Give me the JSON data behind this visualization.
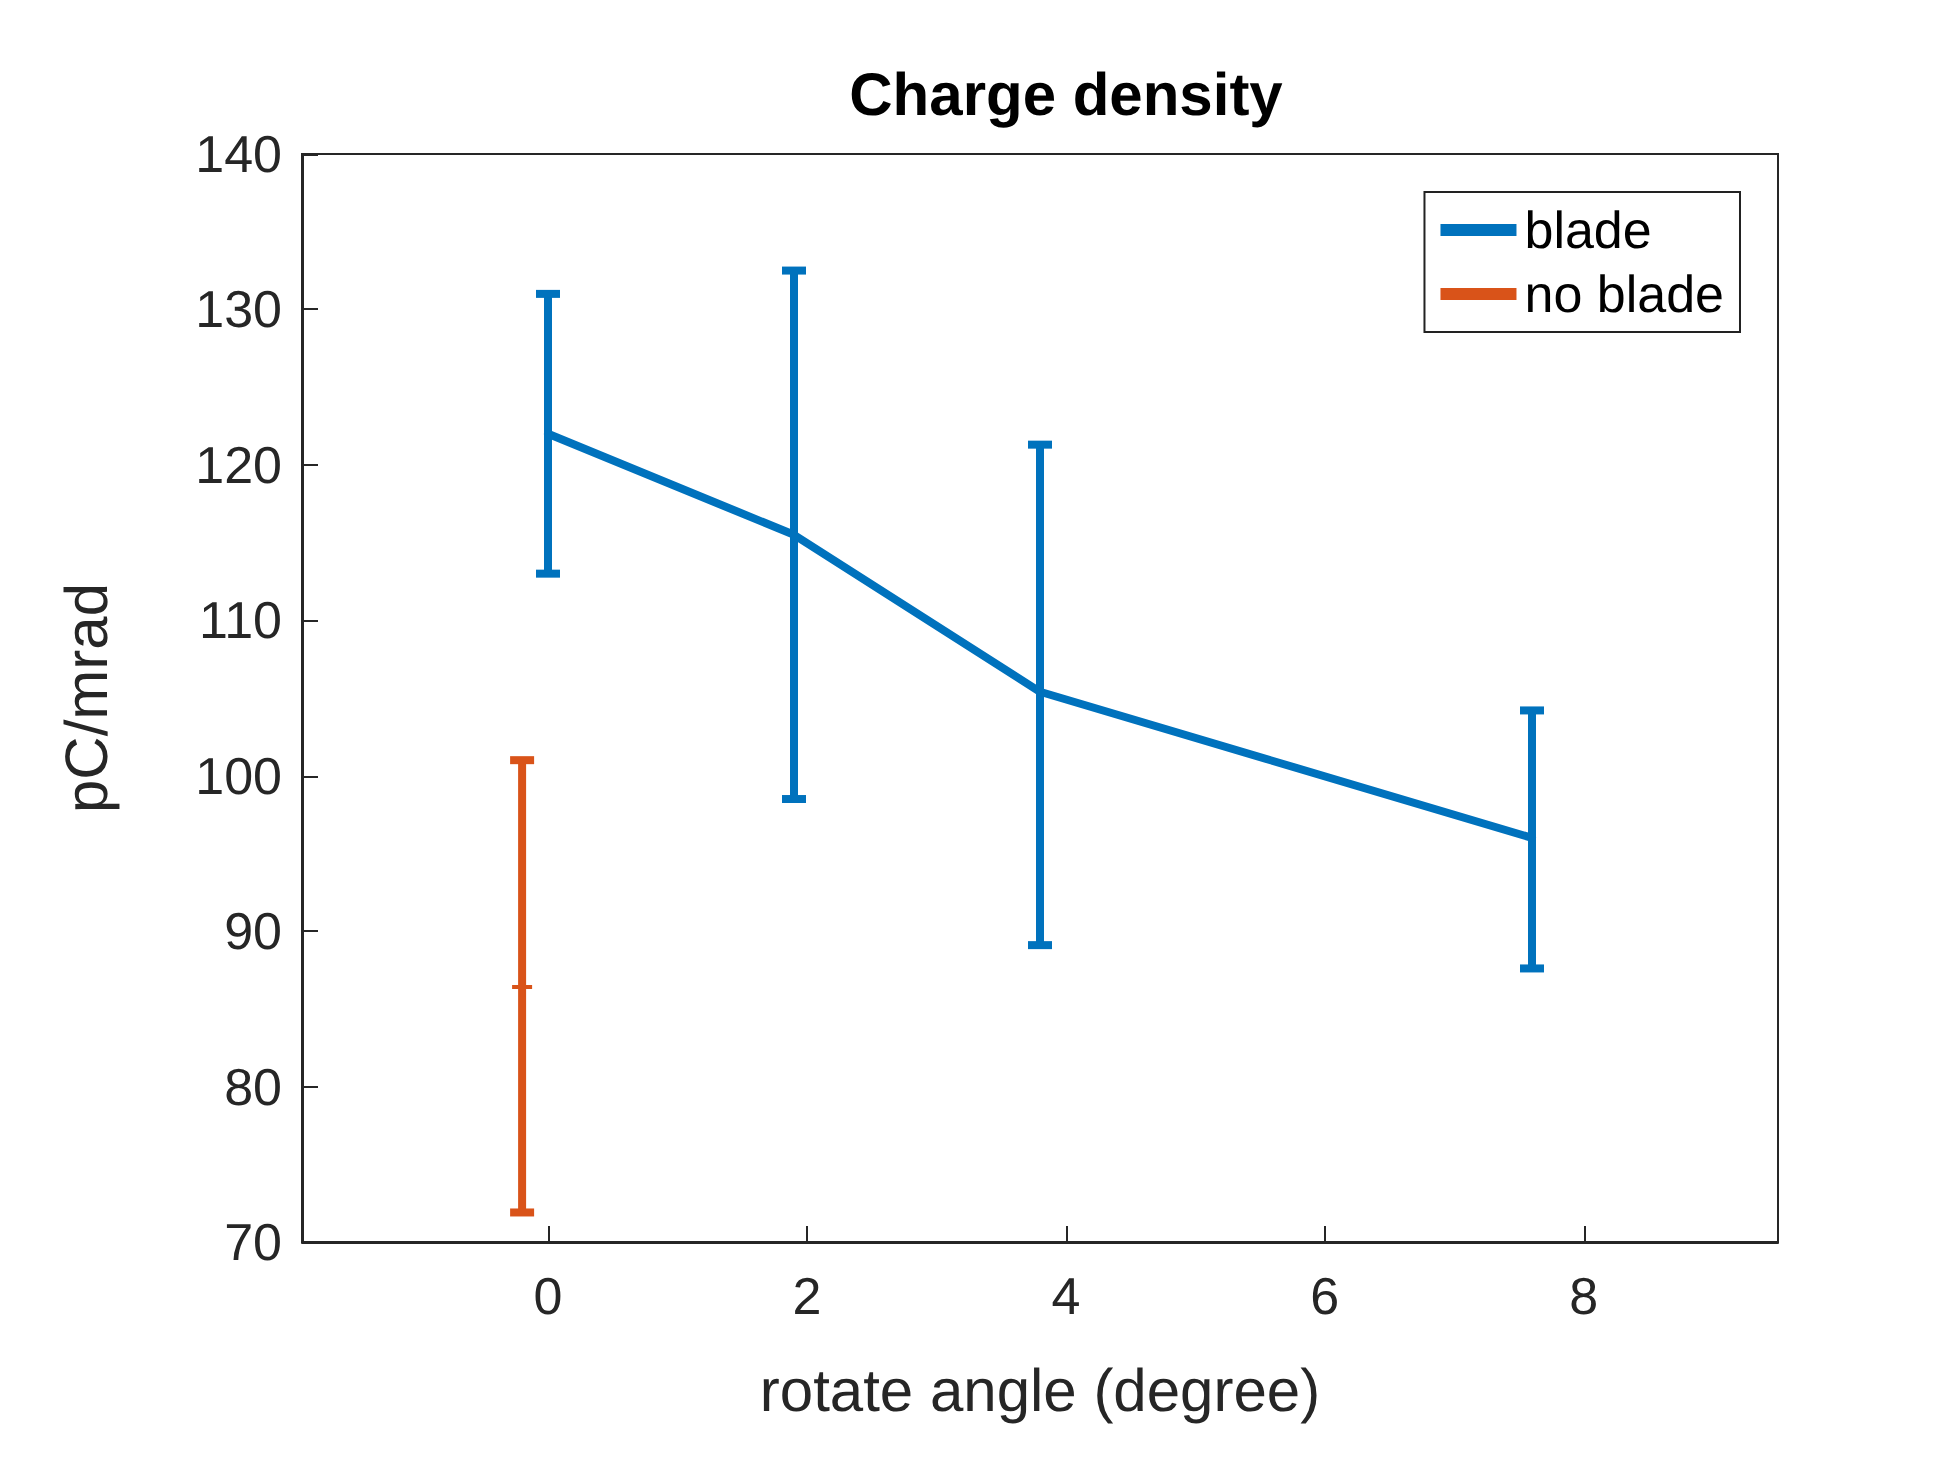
{
  "chart_data": {
    "type": "line",
    "title": "Charge density",
    "xlabel": "rotate angle (degree)",
    "ylabel": "pC/mrad",
    "xlim": [
      -1.9,
      9.5
    ],
    "xticks": [
      0,
      2,
      4,
      6,
      8
    ],
    "ylim": [
      70,
      140
    ],
    "yticks": [
      70,
      80,
      90,
      100,
      110,
      120,
      130,
      140
    ],
    "grid": false,
    "legend": "top right",
    "marker": "none",
    "line_style": "solid",
    "series": [
      {
        "name": "blade",
        "color": "#0072bd",
        "x": [
          0,
          1.9,
          3.8,
          7.6
        ],
        "values": [
          122,
          115.5,
          105.4,
          96
        ],
        "errors": [
          [
            113,
            131
          ],
          [
            98.5,
            132.5
          ],
          [
            89.1,
            121.3
          ],
          [
            87.6,
            104.2
          ]
        ]
      },
      {
        "name": "no blade",
        "color": "#d95319",
        "marker": "cross",
        "x": [
          -0.2
        ],
        "values": [
          86.4
        ],
        "errors": [
          [
            71.9,
            101
          ]
        ]
      }
    ]
  }
}
